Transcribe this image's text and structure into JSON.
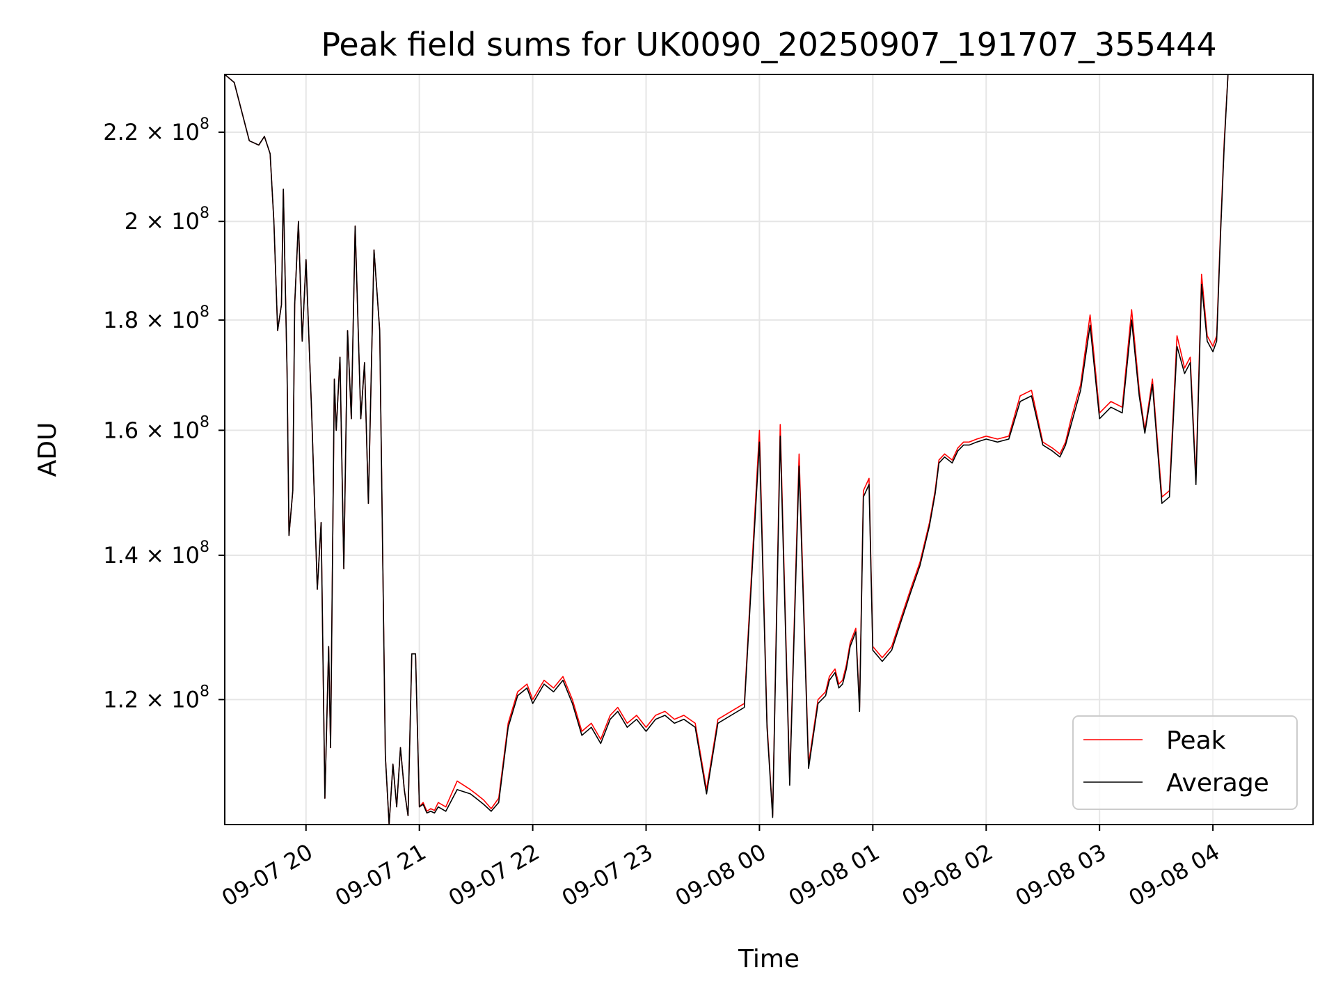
{
  "chart_data": {
    "type": "line",
    "title": "Peak field sums for UK0090_20250907_191707_355444",
    "xlabel": "Time",
    "ylabel": "ADU",
    "yscale": "log",
    "ylim": [
      105000000,
      234000000
    ],
    "xlim": [
      "2025-09-07 19:17",
      "2025-09-08 04:53"
    ],
    "grid": true,
    "legend_position": "bottom-right",
    "x_ticks": [
      {
        "label": "09-07 20",
        "value": "2025-09-07 20:00"
      },
      {
        "label": "09-07 21",
        "value": "2025-09-07 21:00"
      },
      {
        "label": "09-07 22",
        "value": "2025-09-07 22:00"
      },
      {
        "label": "09-07 23",
        "value": "2025-09-07 23:00"
      },
      {
        "label": "09-08 00",
        "value": "2025-09-08 00:00"
      },
      {
        "label": "09-08 01",
        "value": "2025-09-08 01:00"
      },
      {
        "label": "09-08 02",
        "value": "2025-09-08 02:00"
      },
      {
        "label": "09-08 03",
        "value": "2025-09-08 03:00"
      },
      {
        "label": "09-08 04",
        "value": "2025-09-08 04:00"
      }
    ],
    "y_ticks": [
      {
        "mantissa": "1.2",
        "exp": "8",
        "value": 120000000
      },
      {
        "mantissa": "1.4",
        "exp": "8",
        "value": 140000000
      },
      {
        "mantissa": "1.6",
        "exp": "8",
        "value": 160000000
      },
      {
        "mantissa": "1.8",
        "exp": "8",
        "value": 180000000
      },
      {
        "mantissa": "2",
        "exp": "8",
        "value": 200000000
      },
      {
        "mantissa": "2.2",
        "exp": "8",
        "value": 220000000
      }
    ],
    "series": [
      {
        "name": "Peak",
        "color": "#ff0000"
      },
      {
        "name": "Average",
        "color": "#000000"
      }
    ],
    "x": [
      "2025-09-07 19:17",
      "2025-09-07 19:22",
      "2025-09-07 19:30",
      "2025-09-07 19:35",
      "2025-09-07 19:38",
      "2025-09-07 19:41",
      "2025-09-07 19:43",
      "2025-09-07 19:45",
      "2025-09-07 19:47",
      "2025-09-07 19:48",
      "2025-09-07 19:50",
      "2025-09-07 19:51",
      "2025-09-07 19:53",
      "2025-09-07 19:54",
      "2025-09-07 19:56",
      "2025-09-07 19:58",
      "2025-09-07 20:00",
      "2025-09-07 20:03",
      "2025-09-07 20:06",
      "2025-09-07 20:08",
      "2025-09-07 20:10",
      "2025-09-07 20:12",
      "2025-09-07 20:13",
      "2025-09-07 20:15",
      "2025-09-07 20:16",
      "2025-09-07 20:18",
      "2025-09-07 20:20",
      "2025-09-07 20:22",
      "2025-09-07 20:24",
      "2025-09-07 20:26",
      "2025-09-07 20:27",
      "2025-09-07 20:29",
      "2025-09-07 20:31",
      "2025-09-07 20:33",
      "2025-09-07 20:36",
      "2025-09-07 20:39",
      "2025-09-07 20:42",
      "2025-09-07 20:44",
      "2025-09-07 20:46",
      "2025-09-07 20:48",
      "2025-09-07 20:50",
      "2025-09-07 20:52",
      "2025-09-07 20:54",
      "2025-09-07 20:56",
      "2025-09-07 20:58",
      "2025-09-07 21:00",
      "2025-09-07 21:02",
      "2025-09-07 21:04",
      "2025-09-07 21:06",
      "2025-09-07 21:08",
      "2025-09-07 21:10",
      "2025-09-07 21:14",
      "2025-09-07 21:20",
      "2025-09-07 21:27",
      "2025-09-07 21:30",
      "2025-09-07 21:34",
      "2025-09-07 21:38",
      "2025-09-07 21:42",
      "2025-09-07 21:47",
      "2025-09-07 21:52",
      "2025-09-07 21:57",
      "2025-09-07 22:00",
      "2025-09-07 22:06",
      "2025-09-07 22:11",
      "2025-09-07 22:16",
      "2025-09-07 22:21",
      "2025-09-07 22:26",
      "2025-09-07 22:31",
      "2025-09-07 22:36",
      "2025-09-07 22:41",
      "2025-09-07 22:45",
      "2025-09-07 22:50",
      "2025-09-07 22:55",
      "2025-09-07 23:00",
      "2025-09-07 23:05",
      "2025-09-07 23:10",
      "2025-09-07 23:15",
      "2025-09-07 23:20",
      "2025-09-07 23:26",
      "2025-09-07 23:32",
      "2025-09-07 23:38",
      "2025-09-07 23:45",
      "2025-09-07 23:52",
      "2025-09-08 00:00",
      "2025-09-08 00:04",
      "2025-09-08 00:07",
      "2025-09-08 00:11",
      "2025-09-08 00:16",
      "2025-09-08 00:21",
      "2025-09-08 00:26",
      "2025-09-08 00:31",
      "2025-09-08 00:35",
      "2025-09-08 00:37",
      "2025-09-08 00:40",
      "2025-09-08 00:42",
      "2025-09-08 00:44",
      "2025-09-08 00:46",
      "2025-09-08 00:48",
      "2025-09-08 00:51",
      "2025-09-08 00:53",
      "2025-09-08 00:55",
      "2025-09-08 00:58",
      "2025-09-08 01:00",
      "2025-09-08 01:05",
      "2025-09-08 01:10",
      "2025-09-08 01:15",
      "2025-09-08 01:20",
      "2025-09-08 01:25",
      "2025-09-08 01:30",
      "2025-09-08 01:33",
      "2025-09-08 01:35",
      "2025-09-08 01:38",
      "2025-09-08 01:42",
      "2025-09-08 01:45",
      "2025-09-08 01:48",
      "2025-09-08 01:51",
      "2025-09-08 01:55",
      "2025-09-08 02:00",
      "2025-09-08 02:06",
      "2025-09-08 02:12",
      "2025-09-08 02:18",
      "2025-09-08 02:24",
      "2025-09-08 02:30",
      "2025-09-08 02:35",
      "2025-09-08 02:39",
      "2025-09-08 02:42",
      "2025-09-08 02:45",
      "2025-09-08 02:50",
      "2025-09-08 02:55",
      "2025-09-08 03:00",
      "2025-09-08 03:06",
      "2025-09-08 03:12",
      "2025-09-08 03:17",
      "2025-09-08 03:21",
      "2025-09-08 03:24",
      "2025-09-08 03:28",
      "2025-09-08 03:33",
      "2025-09-08 03:37",
      "2025-09-08 03:41",
      "2025-09-08 03:45",
      "2025-09-08 03:48",
      "2025-09-08 03:51",
      "2025-09-08 03:54",
      "2025-09-08 03:57",
      "2025-09-08 04:00",
      "2025-09-08 04:02",
      "2025-09-08 04:04",
      "2025-09-08 04:06",
      "2025-09-08 04:08",
      "2025-09-08 04:10",
      "2025-09-08 04:12",
      "2025-09-08 04:14",
      "2025-09-08 04:17",
      "2025-09-08 04:20",
      "2025-09-08 04:22",
      "2025-09-08 04:25",
      "2025-09-08 04:28",
      "2025-09-08 04:31",
      "2025-09-08 04:34",
      "2025-09-08 04:38",
      "2025-09-08 04:45",
      "2025-09-08 04:53"
    ],
    "peak": [
      234000000,
      232000000,
      218000000,
      217000000,
      219000000,
      215000000,
      200000000,
      178000000,
      183000000,
      207000000,
      170000000,
      143000000,
      150000000,
      183000000,
      200000000,
      176000000,
      192000000,
      163000000,
      135000000,
      145000000,
      108000000,
      127000000,
      114000000,
      169000000,
      160000000,
      173000000,
      138000000,
      178000000,
      162000000,
      199000000,
      186000000,
      162000000,
      172000000,
      148000000,
      194000000,
      178000000,
      113000000,
      105000000,
      112000000,
      107000000,
      114000000,
      109000000,
      106000000,
      126000000,
      126000000,
      107000000,
      107500000,
      106500000,
      106800000,
      106600000,
      107500000,
      107000000,
      110000000,
      109000000,
      108500000,
      107800000,
      106800000,
      108000000,
      117000000,
      121000000,
      122000000,
      120000000,
      122500000,
      121500000,
      123000000,
      120000000,
      116000000,
      117000000,
      115000000,
      118000000,
      119000000,
      117000000,
      118000000,
      116500000,
      118000000,
      118500000,
      117500000,
      118000000,
      117000000,
      109000000,
      117500000,
      118500000,
      119500000,
      160000000,
      117000000,
      106000000,
      161000000,
      110000000,
      156000000,
      112000000,
      120000000,
      121000000,
      123000000,
      124000000,
      122000000,
      122500000,
      124500000,
      127500000,
      129500000,
      119000000,
      150000000,
      152000000,
      127000000,
      125500000,
      127000000,
      131000000,
      135000000,
      139000000,
      145000000,
      150000000,
      155000000,
      156000000,
      155000000,
      157000000,
      158000000,
      158000000,
      158500000,
      159000000,
      158500000,
      159000000,
      166000000,
      167000000,
      158000000,
      157000000,
      156000000,
      158000000,
      162000000,
      168000000,
      181000000,
      163000000,
      165000000,
      164000000,
      182000000,
      167000000,
      160000000,
      169000000,
      149000000,
      150000000,
      177000000,
      171000000,
      173000000,
      152000000,
      189000000,
      177000000,
      175000000,
      177000000,
      198000000,
      218000000,
      234000000,
      234000000
    ],
    "average": [
      234000000,
      232000000,
      218000000,
      217000000,
      219000000,
      215000000,
      200000000,
      178000000,
      183000000,
      207000000,
      170000000,
      143000000,
      150000000,
      183000000,
      200000000,
      176000000,
      192000000,
      163000000,
      135000000,
      145000000,
      108000000,
      127000000,
      114000000,
      169000000,
      160000000,
      173000000,
      138000000,
      178000000,
      162000000,
      199000000,
      186000000,
      162000000,
      172000000,
      148000000,
      194000000,
      178000000,
      113000000,
      105000000,
      112000000,
      107000000,
      114000000,
      109000000,
      106000000,
      126000000,
      126000000,
      107000000,
      107300000,
      106300000,
      106500000,
      106300000,
      107000000,
      106500000,
      109000000,
      108500000,
      108000000,
      107300000,
      106500000,
      107500000,
      116500000,
      120500000,
      121500000,
      119500000,
      122000000,
      121000000,
      122500000,
      119500000,
      115500000,
      116500000,
      114500000,
      117500000,
      118500000,
      116500000,
      117500000,
      116000000,
      117500000,
      118000000,
      117000000,
      117500000,
      116500000,
      108500000,
      117000000,
      118000000,
      119000000,
      158000000,
      116500000,
      105800000,
      159000000,
      109500000,
      154000000,
      111500000,
      119500000,
      120500000,
      122500000,
      123500000,
      121500000,
      122000000,
      124000000,
      127000000,
      129000000,
      118500000,
      149000000,
      151000000,
      126500000,
      125000000,
      126500000,
      130500000,
      134500000,
      138500000,
      144500000,
      149500000,
      154500000,
      155500000,
      154500000,
      156500000,
      157500000,
      157500000,
      158000000,
      158500000,
      158000000,
      158500000,
      165000000,
      166000000,
      157500000,
      156500000,
      155500000,
      157500000,
      161000000,
      167000000,
      179000000,
      162000000,
      164000000,
      163000000,
      180000000,
      166000000,
      159500000,
      168000000,
      148000000,
      149000000,
      175000000,
      170000000,
      172000000,
      151000000,
      187000000,
      176000000,
      174000000,
      176000000,
      197000000,
      217000000,
      234000000,
      234000000
    ]
  }
}
